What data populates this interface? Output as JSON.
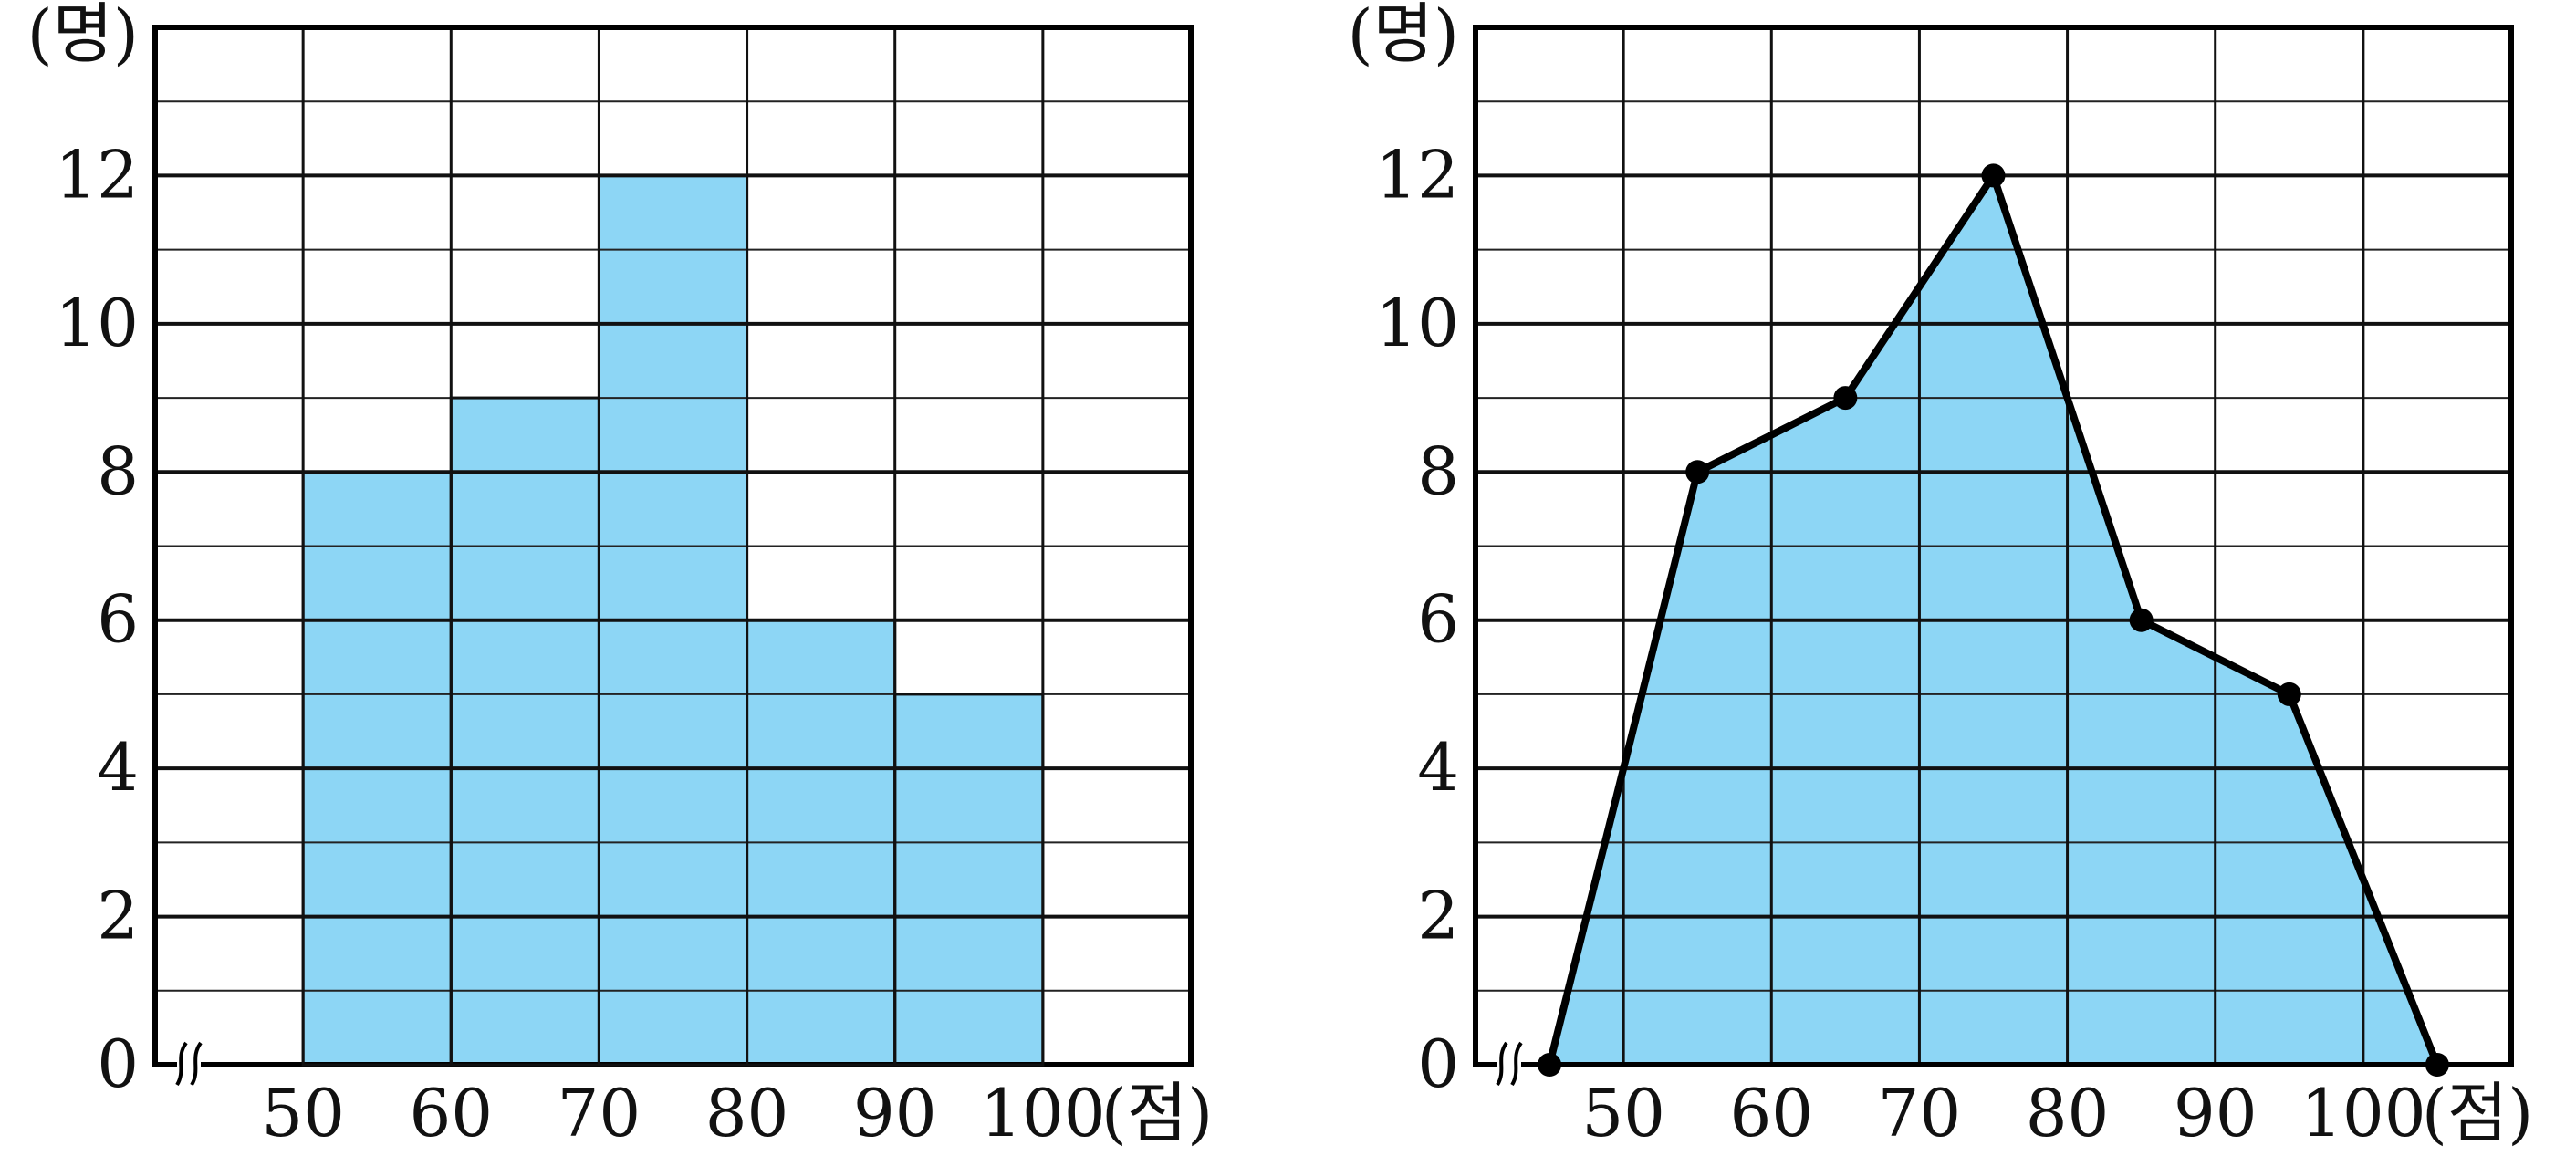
{
  "chart_data": [
    {
      "type": "bar",
      "variant": "histogram",
      "bins": [
        [
          50,
          60
        ],
        [
          60,
          70
        ],
        [
          70,
          80
        ],
        [
          80,
          90
        ],
        [
          90,
          100
        ]
      ],
      "values": [
        8,
        9,
        12,
        6,
        5
      ],
      "x_ticks": [
        "50",
        "60",
        "70",
        "80",
        "90",
        "100"
      ],
      "y_ticks": [
        "0",
        "2",
        "4",
        "6",
        "8",
        "10",
        "12"
      ],
      "xlabel": "(점)",
      "ylabel": "(명)",
      "xlim": [
        40,
        110
      ],
      "ylim": [
        0,
        14
      ],
      "axis_break_x": true,
      "grid": true,
      "fill_color": "#8dd6f5"
    },
    {
      "type": "line",
      "variant": "frequency-polygon",
      "x": [
        45,
        55,
        65,
        75,
        85,
        95,
        105
      ],
      "y": [
        0,
        8,
        9,
        12,
        6,
        5,
        0
      ],
      "x_ticks": [
        "50",
        "60",
        "70",
        "80",
        "90",
        "100"
      ],
      "y_ticks": [
        "0",
        "2",
        "4",
        "6",
        "8",
        "10",
        "12"
      ],
      "xlabel": "(점)",
      "ylabel": "(명)",
      "xlim": [
        40,
        110
      ],
      "ylim": [
        0,
        14
      ],
      "axis_break_x": true,
      "grid": true,
      "fill_color": "#8dd6f5",
      "line_color": "#000000"
    }
  ]
}
